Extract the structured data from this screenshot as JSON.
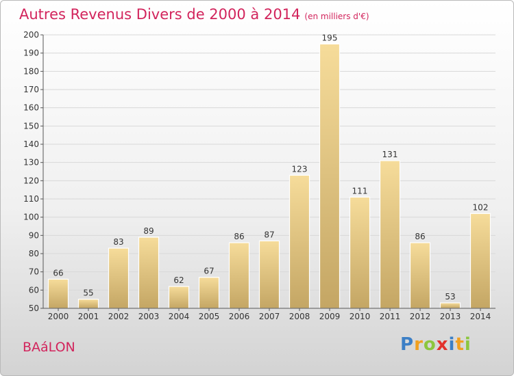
{
  "title": "Autres Revenus Divers de 2000 à 2014",
  "unit_note": "(en milliers d'€)",
  "place_name": "BAáLON",
  "logo": {
    "text": "Proxiti",
    "letters": [
      {
        "ch": "P",
        "color": "#3c7fc6"
      },
      {
        "ch": "r",
        "color": "#f0a020"
      },
      {
        "ch": "o",
        "color": "#8cc63e"
      },
      {
        "ch": "x",
        "color": "#e2322c"
      },
      {
        "ch": "i",
        "color": "#3c7fc6"
      },
      {
        "ch": "t",
        "color": "#f0a020"
      },
      {
        "ch": "i",
        "color": "#8cc63e"
      }
    ]
  },
  "colors": {
    "title": "#d2245c",
    "bar_top": "#f6dc9a",
    "bar_bottom": "#c4a664",
    "grid": "#d8d8d8",
    "axis": "#555555"
  },
  "chart_data": {
    "type": "bar",
    "categories": [
      "2000",
      "2001",
      "2002",
      "2003",
      "2004",
      "2005",
      "2006",
      "2007",
      "2008",
      "2009",
      "2010",
      "2011",
      "2012",
      "2013",
      "2014"
    ],
    "values": [
      66,
      55,
      83,
      89,
      62,
      67,
      86,
      87,
      123,
      195,
      111,
      131,
      86,
      53,
      102
    ],
    "ylim": [
      50,
      200
    ],
    "yticks": [
      50,
      60,
      70,
      80,
      90,
      100,
      110,
      120,
      130,
      140,
      150,
      160,
      170,
      180,
      190,
      200
    ],
    "grid": true,
    "xlabel": "",
    "ylabel": ""
  }
}
